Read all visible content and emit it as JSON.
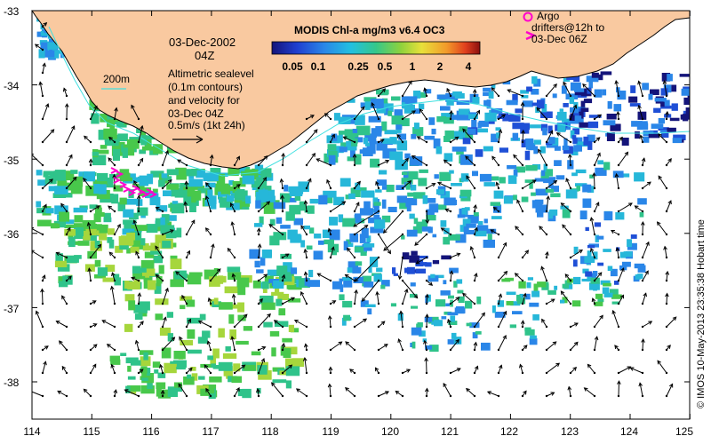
{
  "figure": {
    "date": "03-Dec-2002",
    "time": "04Z",
    "colorbar_title": "MODIS Chl-a mg/m3 v6.4 OC3",
    "colorbar_ticks": [
      "0.05",
      "0.1",
      "0.25",
      "0.5",
      "1",
      "2",
      "4"
    ],
    "contour_label": "200m",
    "sealevel_note": [
      "Altimetric sealevel",
      "(0.1m contours)",
      "and velocity for",
      "03-Dec 04Z"
    ],
    "velocity_scale": "0.5m/s (1kt 24h)",
    "argo_legend": [
      "Argo",
      "drifters@12h to",
      "03-Dec 06Z"
    ],
    "credit": "© IMOS 10-May-2013 23:35:38 Hobart time"
  },
  "axes": {
    "x_ticks": [
      "114",
      "115",
      "116",
      "117",
      "118",
      "119",
      "120",
      "121",
      "122",
      "123",
      "124",
      "125"
    ],
    "y_ticks": [
      "-33",
      "-34",
      "-35",
      "-36",
      "-37",
      "-38"
    ],
    "lon_range": [
      114,
      125
    ],
    "lat_range": [
      -38.5,
      -33
    ]
  },
  "colors": {
    "land": "#f9c9a0",
    "contour": "#40e0e0",
    "argo": "#ff00cc",
    "arrows": "#000000",
    "chl_palette": [
      "#14147a",
      "#1f4fd6",
      "#2a86e8",
      "#26b7d9",
      "#2fc38a",
      "#48c84b",
      "#a6d63c",
      "#e8d94a",
      "#f2a23a",
      "#e04a2a",
      "#a01a1a"
    ]
  }
}
